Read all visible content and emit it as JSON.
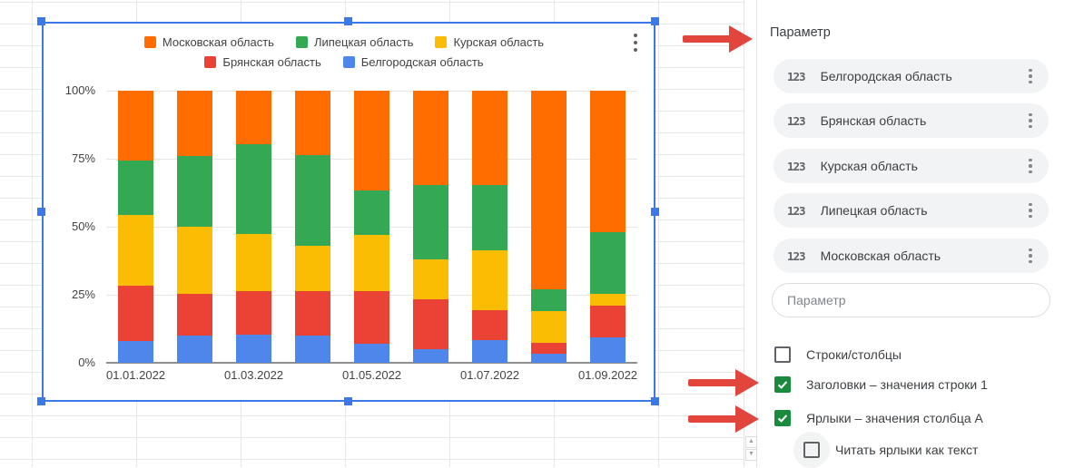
{
  "colors": {
    "selection_blue": "#3b78e8",
    "arrow_red": "#e2453c",
    "checkbox_green": "#1a8a3c",
    "chip_bg": "#f1f3f4",
    "grid_line": "#e7e8ea"
  },
  "icons": {
    "param_type": "123",
    "chart_menu": "kebab-vertical",
    "scroll_up": "▲",
    "scroll_down": "▼"
  },
  "chart_data": {
    "type": "bar",
    "subtype": "100-percent-stacked-column",
    "title": "",
    "legend_position": "top",
    "grid": true,
    "ylim": [
      0,
      100
    ],
    "bars_count": 9,
    "y_tick_labels": [
      "100%",
      "75%",
      "50%",
      "25%",
      "0%"
    ],
    "x_tick_labels": [
      "01.01.2022",
      "01.03.2022",
      "01.05.2022",
      "01.07.2022",
      "01.09.2022"
    ],
    "x_tick_bar_indices": [
      0,
      2,
      4,
      6,
      8
    ],
    "stack_bottom_to_top": [
      "Белгородская область",
      "Брянская область",
      "Курская область",
      "Липецкая область",
      "Московская область"
    ],
    "series": [
      {
        "name": "Московская область",
        "color": "#ff6d01",
        "values": [
          25.5,
          24,
          19.5,
          23.5,
          36.5,
          34.5,
          34.5,
          73,
          52
        ]
      },
      {
        "name": "Липецкая область",
        "color": "#34a853",
        "values": [
          20,
          26,
          33,
          33.5,
          16.5,
          27.5,
          24,
          8,
          22.5
        ]
      },
      {
        "name": "Курская область",
        "color": "#fbbc04",
        "values": [
          26,
          24.5,
          21,
          16.5,
          20.5,
          14.5,
          22,
          11.5,
          4.5
        ]
      },
      {
        "name": "Брянская область",
        "color": "#ea4335",
        "values": [
          20.5,
          15.5,
          16,
          16.5,
          19.5,
          18.5,
          11,
          4,
          11.5
        ]
      },
      {
        "name": "Белгородская область",
        "color": "#4f86ec",
        "values": [
          8,
          10,
          10.5,
          10,
          7,
          5,
          8.5,
          3.5,
          9.5
        ]
      }
    ]
  },
  "panel": {
    "title": "Параметр",
    "params": [
      {
        "icon": "123",
        "label": "Белгородская область"
      },
      {
        "icon": "123",
        "label": "Брянская область"
      },
      {
        "icon": "123",
        "label": "Курская область"
      },
      {
        "icon": "123",
        "label": "Липецкая область"
      },
      {
        "icon": "123",
        "label": "Московская область"
      }
    ],
    "input_placeholder": "Параметр",
    "checkboxes": [
      {
        "label": "Строки/столбцы",
        "checked": false
      },
      {
        "label": "Заголовки – значения строки 1",
        "checked": true
      },
      {
        "label": "Ярлыки – значения столбца A",
        "checked": true
      },
      {
        "label": "Читать ярлыки как текст",
        "checked": false
      }
    ]
  },
  "annotations": {
    "arrows": [
      {
        "points_to": "panel-title"
      },
      {
        "points_to": "headers-row1-checkbox"
      },
      {
        "points_to": "labels-columnA-checkbox"
      }
    ]
  }
}
